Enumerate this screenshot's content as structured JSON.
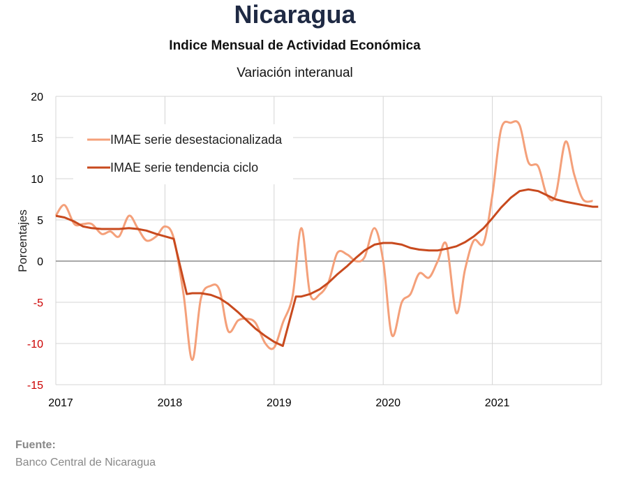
{
  "page": {
    "title": "Nicaragua",
    "subtitle": "Indice Mensual de  Actividad Económica",
    "subsubtitle": "Variación interanual",
    "source_label": "Fuente:",
    "source_text": "Banco Central de Nicaragua"
  },
  "colors": {
    "series_desest": "#f4a07a",
    "series_tendencia": "#c84a1e",
    "grid": "#d4d4d4",
    "zero_line": "#8c8c8c",
    "negative_ticks": "#cc0000",
    "positive_ticks": "#000000"
  },
  "chart_data": {
    "type": "line",
    "ylabel": "Porcentajes",
    "xlabel": "",
    "ylim": [
      -15,
      20
    ],
    "yticks": [
      -15,
      -10,
      -5,
      0,
      5,
      10,
      15,
      20
    ],
    "xlim": [
      2017,
      2022
    ],
    "xticks": [
      2017,
      2018,
      2019,
      2020,
      2021
    ],
    "grid": true,
    "legend": "top-left",
    "series": [
      {
        "name": "IMAE serie desestacionalizada",
        "smooth": true,
        "x": [
          2017.0,
          2017.08,
          2017.17,
          2017.25,
          2017.33,
          2017.42,
          2017.5,
          2017.58,
          2017.67,
          2017.75,
          2017.83,
          2017.92,
          2018.0,
          2018.08,
          2018.17,
          2018.25,
          2018.33,
          2018.42,
          2018.5,
          2018.58,
          2018.67,
          2018.75,
          2018.83,
          2018.92,
          2019.0,
          2019.08,
          2019.17,
          2019.25,
          2019.33,
          2019.42,
          2019.5,
          2019.58,
          2019.67,
          2019.75,
          2019.83,
          2019.92,
          2020.0,
          2020.08,
          2020.17,
          2020.25,
          2020.33,
          2020.42,
          2020.5,
          2020.58,
          2020.67,
          2020.75,
          2020.83,
          2020.92,
          2021.0,
          2021.08,
          2021.17,
          2021.25,
          2021.33,
          2021.42,
          2021.5,
          2021.58,
          2021.67,
          2021.75,
          2021.83,
          2021.92
        ],
        "values": [
          5.5,
          6.8,
          4.5,
          4.5,
          4.5,
          3.3,
          3.6,
          3.0,
          5.5,
          4.0,
          2.5,
          3.0,
          4.2,
          2.8,
          -4.0,
          -12.0,
          -4.5,
          -3.0,
          -3.5,
          -8.5,
          -7.2,
          -7.0,
          -7.5,
          -10.0,
          -10.5,
          -7.5,
          -4.2,
          4.0,
          -4.0,
          -4.0,
          -2.5,
          1.0,
          0.8,
          0.0,
          0.5,
          4.0,
          0.0,
          -9.0,
          -5.0,
          -4.0,
          -1.5,
          -2.0,
          0.0,
          2.0,
          -6.3,
          -1.0,
          2.5,
          2.2,
          8.0,
          16.0,
          16.8,
          16.5,
          12.0,
          11.5,
          8.0,
          8.0,
          14.5,
          10.5,
          7.5,
          7.3
        ]
      },
      {
        "name": "IMAE serie  tendencia ciclo",
        "smooth": false,
        "x": [
          2017.0,
          2017.08,
          2017.17,
          2017.25,
          2017.33,
          2017.42,
          2017.5,
          2017.58,
          2017.67,
          2017.75,
          2017.83,
          2017.92,
          2018.0,
          2018.08,
          2018.2,
          2018.25,
          2018.33,
          2018.42,
          2018.5,
          2018.58,
          2018.67,
          2018.75,
          2018.83,
          2018.92,
          2019.0,
          2019.08,
          2019.2,
          2019.25,
          2019.33,
          2019.42,
          2019.5,
          2019.58,
          2019.67,
          2019.75,
          2019.83,
          2019.92,
          2020.0,
          2020.08,
          2020.17,
          2020.25,
          2020.33,
          2020.42,
          2020.5,
          2020.58,
          2020.67,
          2020.75,
          2020.83,
          2020.92,
          2021.0,
          2021.08,
          2021.17,
          2021.25,
          2021.33,
          2021.42,
          2021.5,
          2021.58,
          2021.67,
          2021.75,
          2021.83,
          2021.92,
          2021.97
        ],
        "values": [
          5.5,
          5.3,
          4.8,
          4.2,
          4.0,
          3.9,
          3.9,
          3.9,
          4.0,
          3.9,
          3.7,
          3.3,
          3.0,
          2.7,
          -4.0,
          -3.9,
          -3.9,
          -4.1,
          -4.5,
          -5.2,
          -6.2,
          -7.2,
          -8.2,
          -9.1,
          -9.8,
          -10.3,
          -4.3,
          -4.3,
          -4.0,
          -3.4,
          -2.6,
          -1.6,
          -0.6,
          0.4,
          1.3,
          2.0,
          2.2,
          2.2,
          2.0,
          1.6,
          1.4,
          1.3,
          1.3,
          1.5,
          1.8,
          2.3,
          3.0,
          4.0,
          5.2,
          6.5,
          7.7,
          8.5,
          8.7,
          8.5,
          8.0,
          7.5,
          7.2,
          7.0,
          6.8,
          6.6,
          6.6
        ]
      }
    ]
  }
}
